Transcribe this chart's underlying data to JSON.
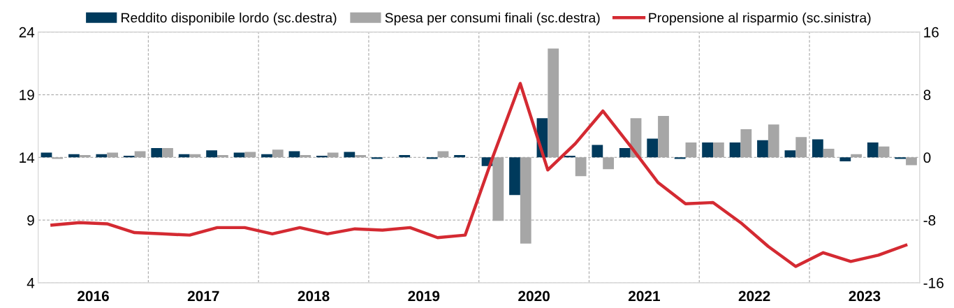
{
  "chart_data": {
    "type": "bar",
    "legend": "top",
    "grid": true,
    "x": [
      2016.125,
      2016.375,
      2016.625,
      2016.875,
      2017.125,
      2017.375,
      2017.625,
      2017.875,
      2018.125,
      2018.375,
      2018.625,
      2018.875,
      2019.125,
      2019.375,
      2019.625,
      2019.875,
      2020.125,
      2020.375,
      2020.625,
      2020.875,
      2021.125,
      2021.375,
      2021.625,
      2021.875,
      2022.125,
      2022.375,
      2022.625,
      2022.875,
      2023.125,
      2023.375,
      2023.625,
      2023.875
    ],
    "xlim": [
      2016,
      2024
    ],
    "xticks": [
      {
        "value": 2016.5,
        "label": "2016"
      },
      {
        "value": 2017,
        "label": null
      },
      {
        "value": 2017.5,
        "label": "2017"
      },
      {
        "value": 2018,
        "label": null
      },
      {
        "value": 2018.5,
        "label": "2018"
      },
      {
        "value": 2019,
        "label": null
      },
      {
        "value": 2019.5,
        "label": "2019"
      },
      {
        "value": 2020,
        "label": null
      },
      {
        "value": 2020.5,
        "label": "2020"
      },
      {
        "value": 2021,
        "label": null
      },
      {
        "value": 2021.5,
        "label": "2021"
      },
      {
        "value": 2022,
        "label": null
      },
      {
        "value": 2022.5,
        "label": "2022"
      },
      {
        "value": 2023,
        "label": null
      },
      {
        "value": 2023.5,
        "label": "2023"
      }
    ],
    "ylim": [
      4,
      24
    ],
    "yticks": [
      4,
      9,
      14,
      19,
      24
    ],
    "y2lim": [
      -16,
      16
    ],
    "y2ticks": [
      -16,
      -8,
      0,
      8,
      16
    ],
    "series": [
      {
        "name": "Reddito disponibile lordo (sc.destra)",
        "axis": "y2",
        "color": "#003a5c",
        "values": [
          0.6,
          0.4,
          0.4,
          0.2,
          1.2,
          0.4,
          0.9,
          0.6,
          0.4,
          0.8,
          0.2,
          0.7,
          -0.2,
          0.3,
          -0.2,
          0.3,
          -1.1,
          -4.8,
          5.0,
          0.2,
          1.6,
          1.2,
          2.4,
          -0.2,
          1.9,
          1.9,
          2.2,
          0.9,
          2.3,
          -0.5,
          1.9,
          -0.2
        ]
      },
      {
        "name": "Spesa per consumi finali (sc.destra)",
        "axis": "y2",
        "color": "#a6a6a6",
        "values": [
          -0.2,
          0.3,
          0.6,
          0.8,
          1.2,
          0.4,
          0.3,
          0.7,
          1.0,
          0.3,
          0.6,
          0.3,
          0,
          0,
          0.8,
          0,
          -8.1,
          -11.0,
          13.9,
          -2.4,
          -1.5,
          5.0,
          5.3,
          1.9,
          1.9,
          3.6,
          4.2,
          2.6,
          1.1,
          0.4,
          1.4,
          -1.0
        ]
      },
      {
        "name": "Propensione al risparmio (sc.sinistra)",
        "type": "line",
        "color": "#d42a32",
        "values": [
          8.6,
          8.8,
          8.7,
          8.0,
          7.9,
          7.8,
          8.4,
          8.4,
          7.9,
          8.4,
          7.9,
          8.3,
          8.2,
          8.4,
          7.6,
          7.8,
          14.0,
          19.9,
          13.0,
          15.1,
          17.7,
          14.9,
          12.0,
          10.3,
          10.4,
          8.8,
          6.9,
          5.3,
          6.4,
          5.7,
          6.2,
          7.0
        ]
      }
    ]
  }
}
